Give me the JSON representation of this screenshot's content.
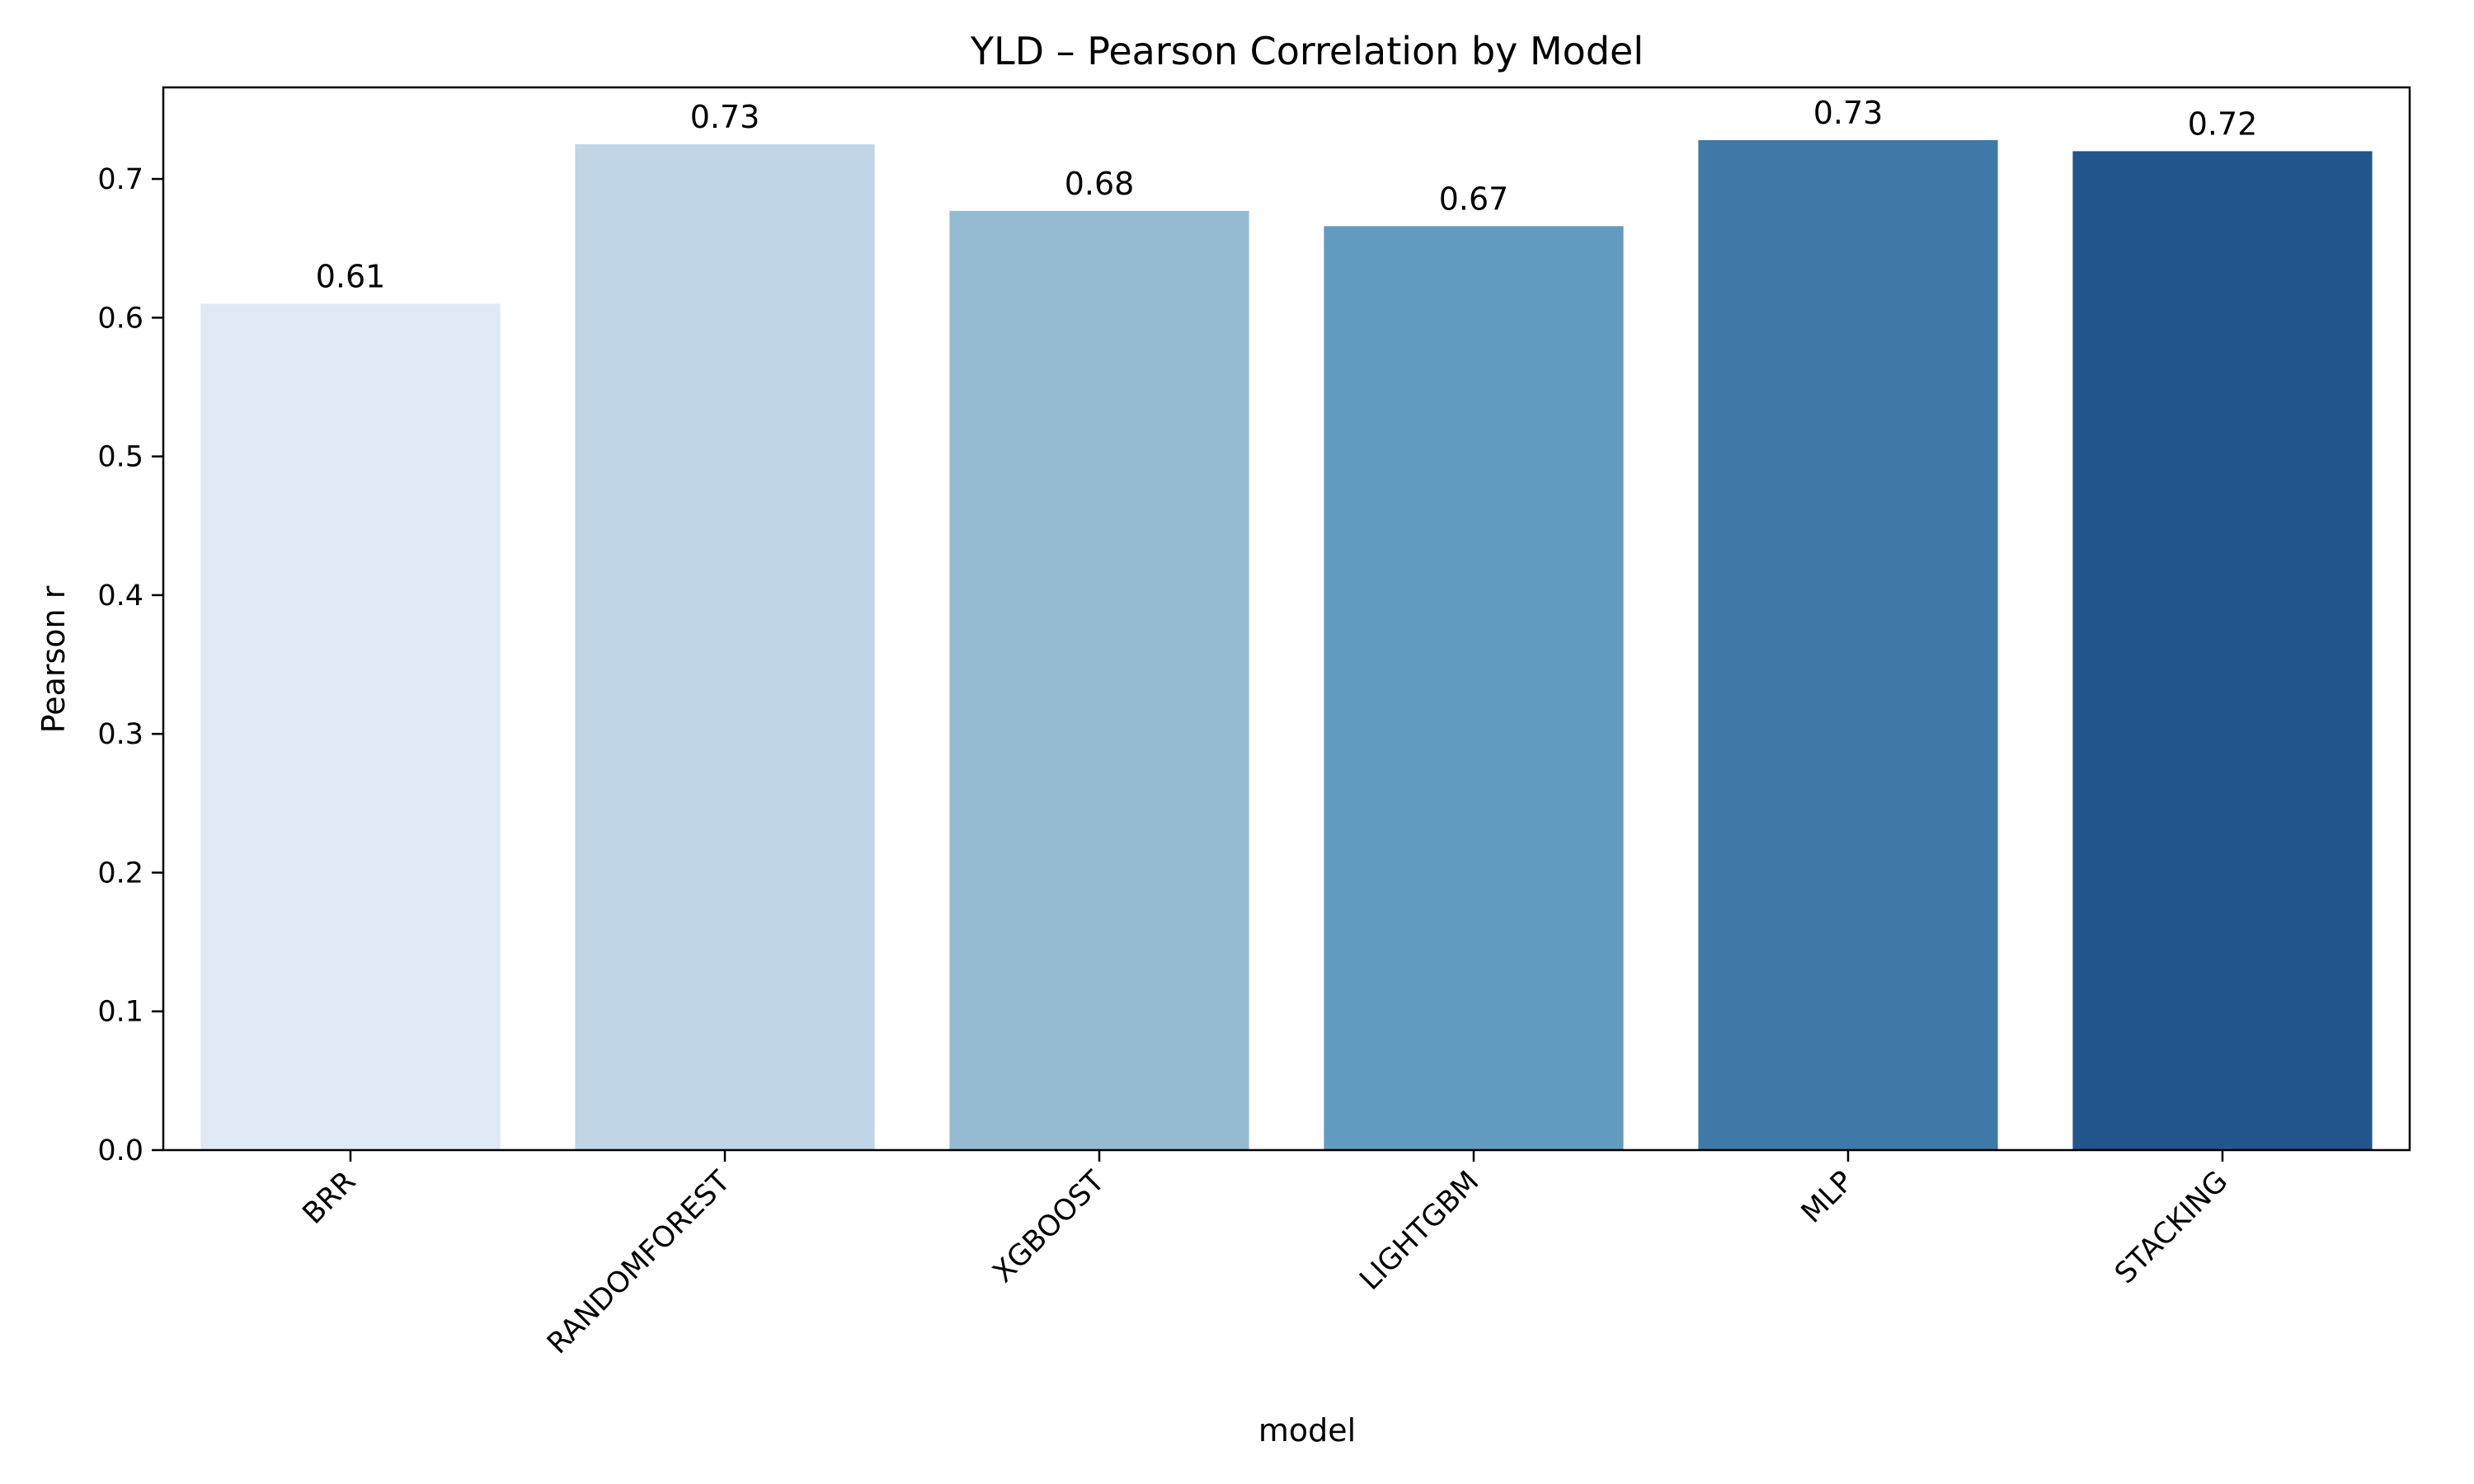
{
  "chart_data": {
    "type": "bar",
    "title": "YLD – Pearson Correlation by Model",
    "xlabel": "model",
    "ylabel": "Pearson r",
    "categories": [
      "BRR",
      "RANDOMFOREST",
      "XGBOOST",
      "LIGHTGBM",
      "MLP",
      "STACKING"
    ],
    "values": [
      0.61,
      0.725,
      0.677,
      0.666,
      0.728,
      0.72
    ],
    "value_labels": [
      "0.61",
      "0.73",
      "0.68",
      "0.67",
      "0.73",
      "0.72"
    ],
    "bar_colors": [
      "#dfe9f4",
      "#c0d5e5",
      "#95bbd2",
      "#639bbf",
      "#3e79a8",
      "#21558b"
    ],
    "ylim": [
      0,
      0.766
    ],
    "yticks": [
      0.0,
      0.1,
      0.2,
      0.3,
      0.4,
      0.5,
      0.6,
      0.7
    ],
    "ytick_labels": [
      "0.0",
      "0.1",
      "0.2",
      "0.3",
      "0.4",
      "0.5",
      "0.6",
      "0.7"
    ],
    "grid": false,
    "legend": "none"
  }
}
